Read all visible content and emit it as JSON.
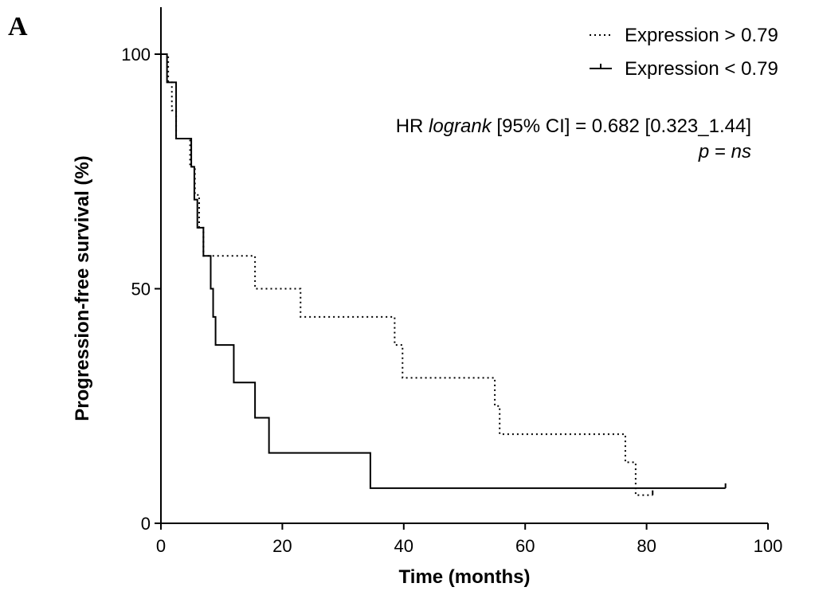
{
  "panel_label": "A",
  "chart_data": {
    "type": "line",
    "step": true,
    "xlabel": "Time (months)",
    "ylabel": "Progression-free survival (%)",
    "xlim": [
      0,
      100
    ],
    "ylim": [
      0,
      110
    ],
    "x_ticks": [
      0,
      20,
      40,
      60,
      80,
      100
    ],
    "y_ticks": [
      0,
      50,
      100
    ],
    "x_tick_labels": [
      "0",
      "20",
      "40",
      "60",
      "80",
      "100"
    ],
    "y_tick_labels": [
      "0",
      "50",
      "100"
    ],
    "legend_position": "top-right",
    "series": [
      {
        "name": "Expression > 0.79",
        "style": "dotted",
        "color": "#000000",
        "x": [
          0,
          1.2,
          1.8,
          2.5,
          3.2,
          4.8,
          5.6,
          6.3,
          7.0,
          15.5,
          23.0,
          38.5,
          39.8,
          55.0,
          55.8,
          76.5,
          78.2,
          81.0
        ],
        "y": [
          100,
          94,
          88,
          82,
          82,
          76,
          70,
          63,
          57,
          50,
          44,
          38,
          31,
          25,
          19,
          13,
          6,
          6
        ]
      },
      {
        "name": "Expression < 0.79",
        "style": "solid",
        "color": "#000000",
        "x": [
          0,
          1.0,
          2.5,
          5.0,
          5.5,
          6.0,
          7.0,
          8.2,
          8.6,
          9.0,
          12.0,
          15.5,
          17.8,
          34.5,
          93.0
        ],
        "y": [
          100,
          94,
          82,
          76,
          69,
          63,
          57,
          50,
          44,
          38,
          30,
          22.5,
          15,
          7.5,
          7.5
        ]
      }
    ],
    "annotations": {
      "hr_prefix": "HR ",
      "hr_italic": "logrank",
      "hr_suffix": " [95% CI] = 0.682 [0.323_1.44]",
      "p_italic_1": "p",
      "p_eq": " = ",
      "p_italic_2": "ns"
    }
  }
}
